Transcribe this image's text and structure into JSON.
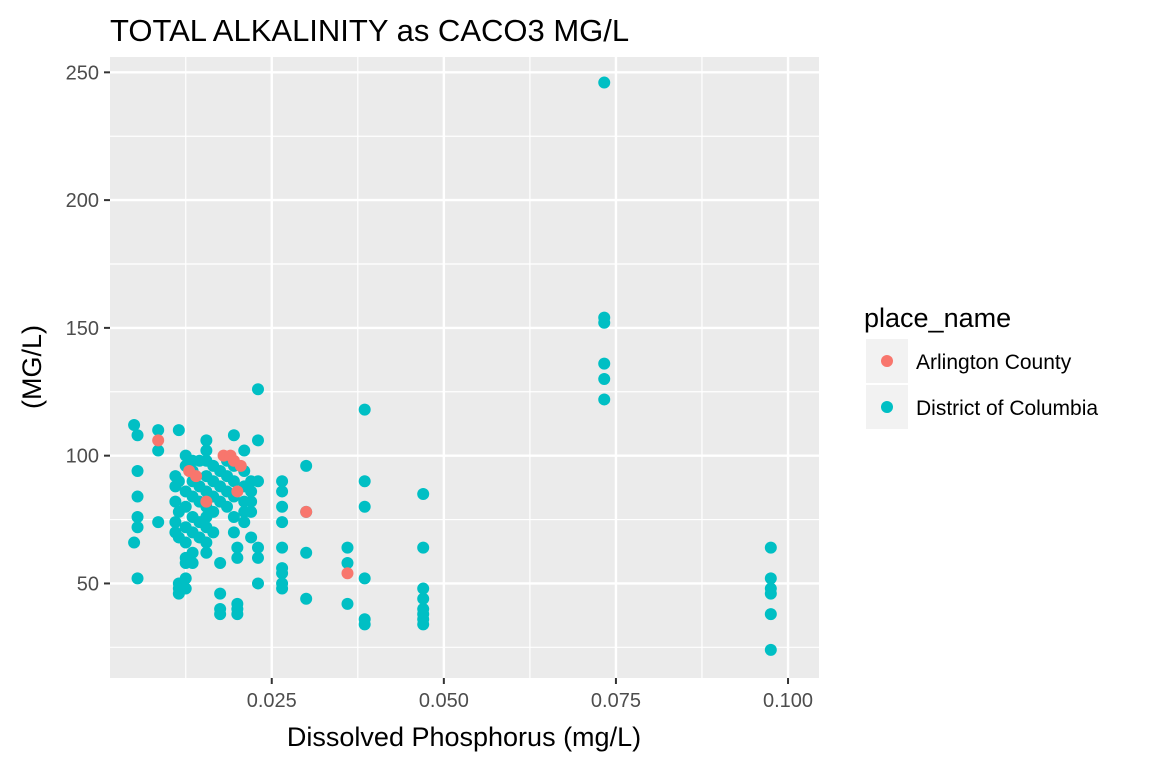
{
  "chart_data": {
    "type": "scatter",
    "title": "TOTAL ALKALINITY as CACO3 MG/L",
    "xlabel": "Dissolved Phosphorus (mg/L)",
    "ylabel": "(MG/L)",
    "xlim": [
      0.0015,
      0.1045
    ],
    "ylim": [
      13,
      256
    ],
    "x_ticks": [
      0.025,
      0.05,
      0.075,
      0.1
    ],
    "x_tick_labels": [
      "0.025",
      "0.050",
      "0.075",
      "0.100"
    ],
    "y_ticks": [
      50,
      100,
      150,
      200,
      250
    ],
    "y_tick_labels": [
      "50",
      "100",
      "150",
      "200",
      "250"
    ],
    "grid": true,
    "legend": {
      "title": "place_name",
      "position": "right",
      "entries": [
        {
          "label": "Arlington County",
          "color": "#F8766D"
        },
        {
          "label": "District of Columbia",
          "color": "#00BFC4"
        }
      ]
    },
    "series": [
      {
        "name": "District of Columbia",
        "color": "#00BFC4",
        "points": [
          [
            0.005,
            112
          ],
          [
            0.005,
            66
          ],
          [
            0.0055,
            108
          ],
          [
            0.0055,
            94
          ],
          [
            0.0055,
            84
          ],
          [
            0.0055,
            76
          ],
          [
            0.0055,
            72
          ],
          [
            0.0055,
            52
          ],
          [
            0.0085,
            110
          ],
          [
            0.0085,
            102
          ],
          [
            0.0085,
            74
          ],
          [
            0.011,
            92
          ],
          [
            0.011,
            88
          ],
          [
            0.011,
            82
          ],
          [
            0.011,
            74
          ],
          [
            0.011,
            70
          ],
          [
            0.0115,
            110
          ],
          [
            0.0115,
            90
          ],
          [
            0.0115,
            78
          ],
          [
            0.0115,
            68
          ],
          [
            0.0115,
            50
          ],
          [
            0.0115,
            48
          ],
          [
            0.0115,
            46
          ],
          [
            0.0125,
            100
          ],
          [
            0.0125,
            96
          ],
          [
            0.0125,
            86
          ],
          [
            0.0125,
            80
          ],
          [
            0.0125,
            72
          ],
          [
            0.0125,
            66
          ],
          [
            0.0125,
            60
          ],
          [
            0.0125,
            58
          ],
          [
            0.0125,
            52
          ],
          [
            0.0125,
            48
          ],
          [
            0.0135,
            98
          ],
          [
            0.0135,
            94
          ],
          [
            0.0135,
            90
          ],
          [
            0.0135,
            84
          ],
          [
            0.0135,
            76
          ],
          [
            0.0135,
            70
          ],
          [
            0.0135,
            62
          ],
          [
            0.0135,
            58
          ],
          [
            0.0145,
            98
          ],
          [
            0.0145,
            88
          ],
          [
            0.0145,
            82
          ],
          [
            0.0145,
            74
          ],
          [
            0.0145,
            68
          ],
          [
            0.0155,
            106
          ],
          [
            0.0155,
            102
          ],
          [
            0.0155,
            98
          ],
          [
            0.0155,
            92
          ],
          [
            0.0155,
            86
          ],
          [
            0.0155,
            80
          ],
          [
            0.0155,
            76
          ],
          [
            0.0155,
            72
          ],
          [
            0.0155,
            66
          ],
          [
            0.0155,
            62
          ],
          [
            0.0165,
            96
          ],
          [
            0.0165,
            90
          ],
          [
            0.0165,
            84
          ],
          [
            0.0165,
            78
          ],
          [
            0.0165,
            70
          ],
          [
            0.0175,
            94
          ],
          [
            0.0175,
            88
          ],
          [
            0.0175,
            82
          ],
          [
            0.0175,
            58
          ],
          [
            0.0175,
            46
          ],
          [
            0.0175,
            40
          ],
          [
            0.0175,
            38
          ],
          [
            0.0185,
            98
          ],
          [
            0.0185,
            92
          ],
          [
            0.0185,
            86
          ],
          [
            0.0185,
            80
          ],
          [
            0.0195,
            108
          ],
          [
            0.0195,
            96
          ],
          [
            0.0195,
            90
          ],
          [
            0.0195,
            84
          ],
          [
            0.0195,
            76
          ],
          [
            0.0195,
            70
          ],
          [
            0.02,
            64
          ],
          [
            0.02,
            60
          ],
          [
            0.02,
            42
          ],
          [
            0.02,
            40
          ],
          [
            0.02,
            38
          ],
          [
            0.021,
            102
          ],
          [
            0.021,
            94
          ],
          [
            0.021,
            88
          ],
          [
            0.021,
            82
          ],
          [
            0.021,
            78
          ],
          [
            0.021,
            74
          ],
          [
            0.022,
            90
          ],
          [
            0.022,
            86
          ],
          [
            0.022,
            82
          ],
          [
            0.022,
            78
          ],
          [
            0.022,
            68
          ],
          [
            0.023,
            126
          ],
          [
            0.023,
            106
          ],
          [
            0.023,
            90
          ],
          [
            0.023,
            64
          ],
          [
            0.023,
            60
          ],
          [
            0.023,
            50
          ],
          [
            0.0265,
            90
          ],
          [
            0.0265,
            86
          ],
          [
            0.0265,
            80
          ],
          [
            0.0265,
            74
          ],
          [
            0.0265,
            64
          ],
          [
            0.0265,
            56
          ],
          [
            0.0265,
            54
          ],
          [
            0.0265,
            50
          ],
          [
            0.0265,
            48
          ],
          [
            0.03,
            96
          ],
          [
            0.03,
            78
          ],
          [
            0.03,
            62
          ],
          [
            0.03,
            44
          ],
          [
            0.036,
            64
          ],
          [
            0.036,
            58
          ],
          [
            0.036,
            42
          ],
          [
            0.0385,
            118
          ],
          [
            0.0385,
            90
          ],
          [
            0.0385,
            80
          ],
          [
            0.0385,
            52
          ],
          [
            0.0385,
            36
          ],
          [
            0.0385,
            34
          ],
          [
            0.047,
            85
          ],
          [
            0.047,
            64
          ],
          [
            0.047,
            48
          ],
          [
            0.047,
            44
          ],
          [
            0.047,
            40
          ],
          [
            0.047,
            38
          ],
          [
            0.047,
            36
          ],
          [
            0.047,
            34
          ],
          [
            0.0733,
            246
          ],
          [
            0.0733,
            154
          ],
          [
            0.0733,
            152
          ],
          [
            0.0733,
            136
          ],
          [
            0.0733,
            130
          ],
          [
            0.0733,
            122
          ],
          [
            0.0975,
            64
          ],
          [
            0.0975,
            52
          ],
          [
            0.0975,
            48
          ],
          [
            0.0975,
            46
          ],
          [
            0.0975,
            38
          ],
          [
            0.0975,
            24
          ]
        ]
      },
      {
        "name": "Arlington County",
        "color": "#F8766D",
        "points": [
          [
            0.0085,
            106
          ],
          [
            0.013,
            94
          ],
          [
            0.014,
            92
          ],
          [
            0.0155,
            82
          ],
          [
            0.018,
            100
          ],
          [
            0.019,
            100
          ],
          [
            0.0195,
            98
          ],
          [
            0.02,
            86
          ],
          [
            0.0205,
            96
          ],
          [
            0.03,
            78
          ],
          [
            0.036,
            54
          ]
        ]
      }
    ]
  }
}
